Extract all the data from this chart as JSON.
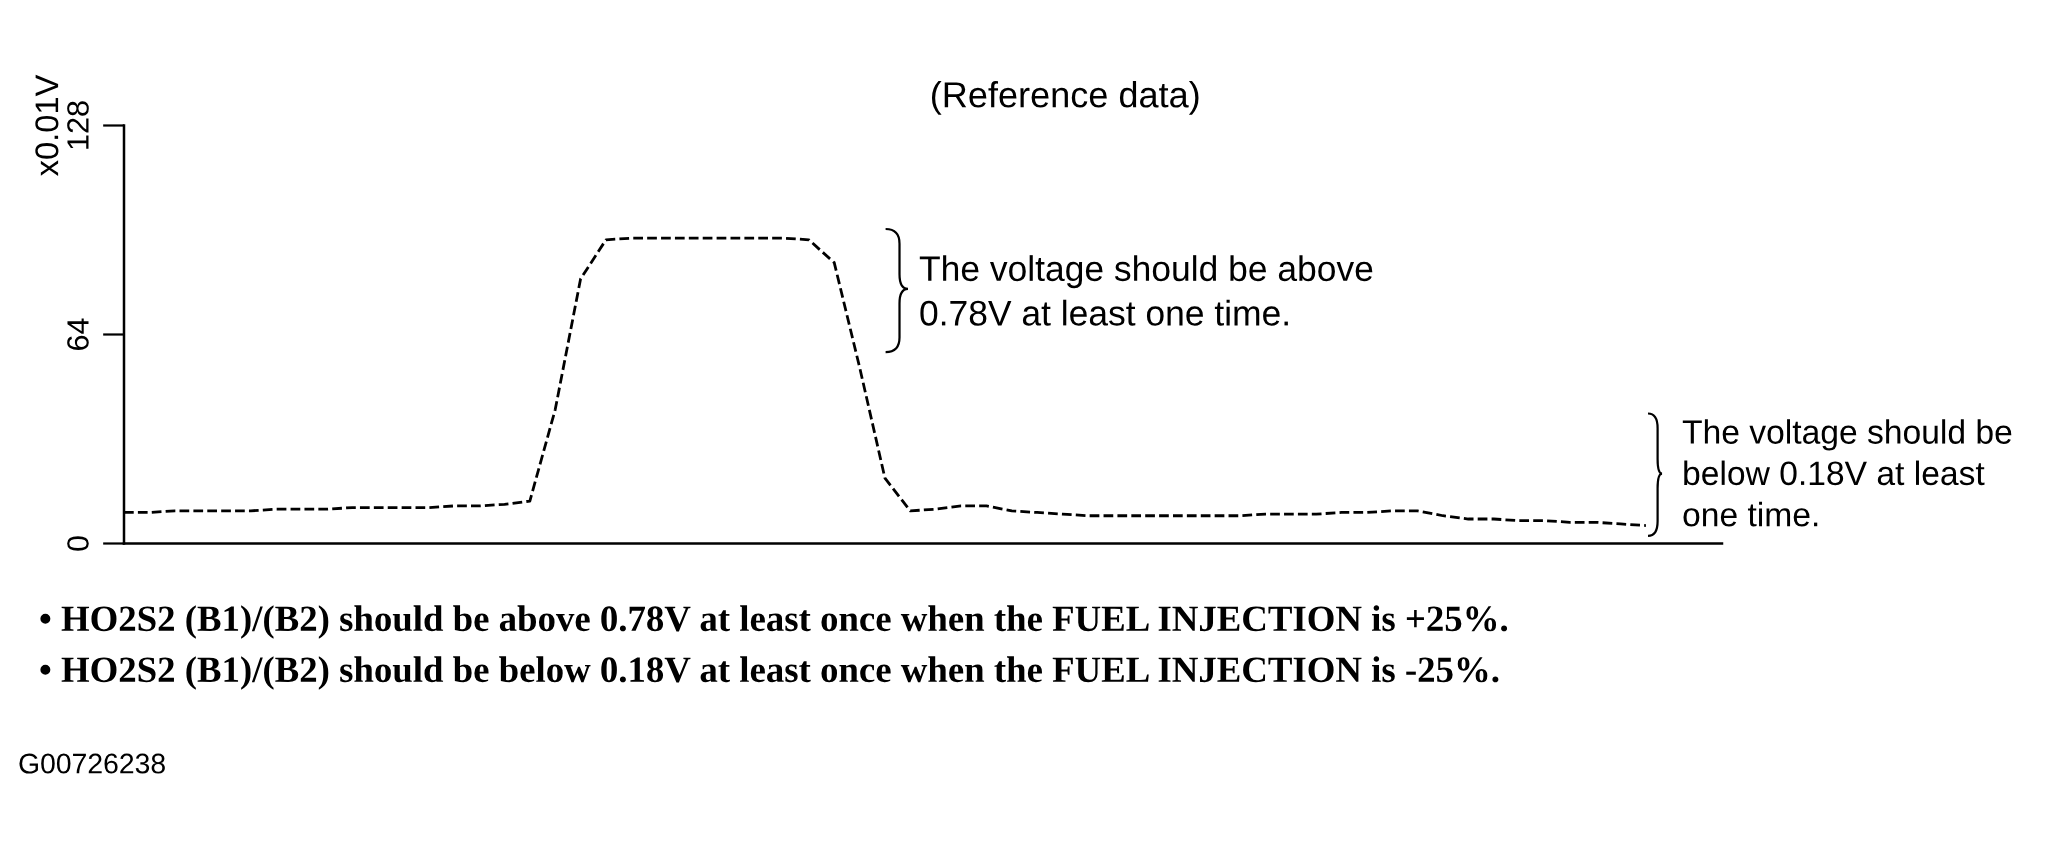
{
  "chart_data": {
    "type": "line",
    "title": "(Reference data)",
    "ylabel": "x0.01V",
    "categories": [
      null,
      null,
      null,
      null,
      null,
      null,
      null,
      null,
      null,
      null,
      null,
      null,
      null,
      null,
      null,
      null,
      null,
      null,
      null,
      null,
      null,
      null,
      null,
      null,
      null,
      null,
      null,
      null,
      null,
      null,
      null,
      null,
      null,
      null,
      null,
      null,
      null,
      null,
      null,
      null,
      null,
      null,
      null,
      null,
      null,
      null,
      null,
      null,
      null,
      null,
      null,
      null,
      null,
      null,
      null,
      null,
      null,
      null,
      null,
      null,
      null,
      null,
      null,
      null
    ],
    "series": [
      {
        "color": "#000000",
        "values": [
          9.5,
          9.5,
          10,
          10,
          10,
          10,
          10.5,
          10.5,
          10.5,
          11,
          11,
          11,
          11,
          11.5,
          11.5,
          12,
          13,
          41,
          81,
          93,
          93.5,
          93.5,
          93.5,
          93.5,
          93.5,
          93.5,
          93.5,
          93,
          86,
          54,
          20,
          10,
          10.5,
          11.5,
          11.5,
          10,
          9.5,
          9,
          8.5,
          8.5,
          8.5,
          8.5,
          8.5,
          8.5,
          8.5,
          9,
          9,
          9,
          9.5,
          9.5,
          10,
          10,
          8.5,
          7.5,
          7.5,
          7,
          7,
          6.5,
          6.5,
          6,
          5.5,
          null,
          null,
          null
        ]
      }
    ],
    "ylim": [
      0,
      128
    ],
    "yticks": [
      0,
      64,
      128
    ],
    "line_style": "dashed",
    "tick_labels": "y",
    "annotations": [
      "The voltage should be above\n0.78V at least one time.",
      "The voltage should be\nbelow 0.18V at least\none time.",
      "• HO2S2 (B1)/(B2) should be above 0.78V at least once when the FUEL INJECTION is +25%.",
      "• HO2S2 (B1)/(B2) should be below 0.18V at least once when the FUEL INJECTION is -25%.",
      "G00726238"
    ]
  }
}
